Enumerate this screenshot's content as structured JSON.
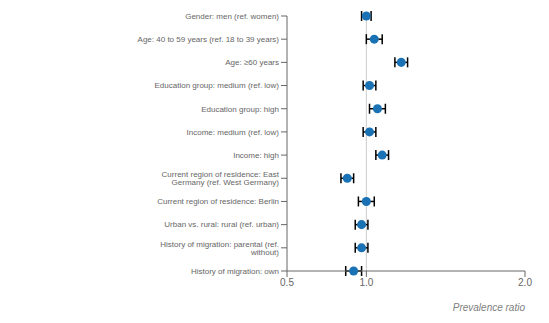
{
  "chart_data": {
    "type": "forest",
    "categories": [
      "Gender: men (ref. women)",
      "Age: 40 to 59 years (ref. 18 to 39 years)",
      "Age: ≥60 years",
      "Education group: medium (ref. low)",
      "Education group: high",
      "Income: medium (ref. low)",
      "Income: high",
      "Current region of residence: East Germany (ref. West Germany)",
      "Current region of residence: Berlin",
      "Urban vs. rural: rural (ref. urban)",
      "History of migration: parental (ref. without)",
      "History of migration: own"
    ],
    "values": [
      1.0,
      1.05,
      1.22,
      1.02,
      1.07,
      1.02,
      1.1,
      0.88,
      1.0,
      0.97,
      0.97,
      0.92
    ],
    "ci_lower": [
      0.97,
      1.0,
      1.18,
      0.98,
      1.02,
      0.98,
      1.06,
      0.84,
      0.95,
      0.93,
      0.93,
      0.87
    ],
    "ci_upper": [
      1.03,
      1.1,
      1.26,
      1.06,
      1.12,
      1.06,
      1.14,
      0.92,
      1.05,
      1.01,
      1.01,
      0.97
    ],
    "color": "#1a72b5",
    "xlabel": "Prevalence ratio",
    "xlim": [
      0.5,
      2.0
    ],
    "xticks": [
      0.5,
      {
        "value": 1.0,
        "label": "1.0"
      },
      {
        "value": 2.0,
        "label": "2.0"
      }
    ],
    "reference_line": 1.0
  }
}
